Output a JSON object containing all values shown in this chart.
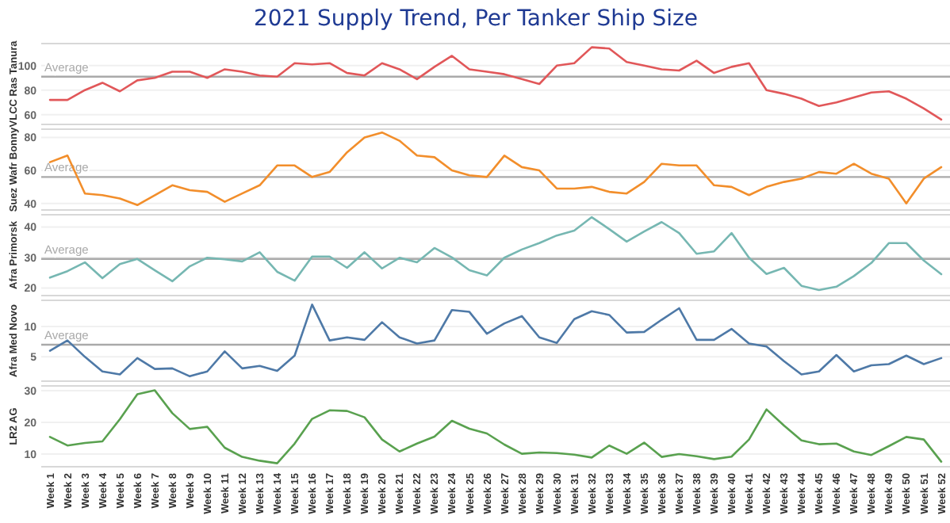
{
  "chart_data": [
    {
      "type": "line",
      "title": "2021 Supply Trend, Per Tanker  Ship Size",
      "ylabel": "VLCC Ras Tanura",
      "categories": [
        null,
        null,
        null,
        null,
        null,
        null,
        null,
        null,
        null,
        null,
        null,
        null,
        null,
        null,
        null,
        null,
        null,
        null,
        null,
        null,
        null,
        null,
        null,
        null,
        null,
        null,
        null,
        null,
        null,
        null,
        null,
        null,
        null,
        null,
        null,
        null,
        null,
        null,
        null,
        null,
        null,
        null,
        null,
        null,
        null,
        null,
        null,
        null,
        null,
        null,
        null,
        null
      ],
      "tick_labels": "y",
      "grid": "y",
      "ylim": [
        52,
        118
      ],
      "yticks": [
        60,
        80,
        100
      ],
      "ref_lines": [
        {
          "axis": "y",
          "value": 91,
          "label": "Average",
          "color": "#aaaaaa"
        }
      ],
      "series": [
        {
          "color": "#e15759",
          "values": [
            72,
            72,
            80,
            86,
            79,
            88,
            90,
            95,
            95,
            90,
            97,
            95,
            92,
            91,
            102,
            101,
            102,
            94,
            92,
            102,
            97,
            89,
            99,
            108,
            97,
            95,
            93,
            89,
            85,
            100,
            102,
            115,
            114,
            103,
            100,
            97,
            96,
            104,
            94,
            99,
            102,
            80,
            77,
            73,
            67,
            70,
            74,
            78,
            79,
            73,
            65,
            56
          ]
        }
      ]
    },
    {
      "type": "line",
      "ylabel": "Suez Wafr Bonny",
      "categories": [
        null,
        null,
        null,
        null,
        null,
        null,
        null,
        null,
        null,
        null,
        null,
        null,
        null,
        null,
        null,
        null,
        null,
        null,
        null,
        null,
        null,
        null,
        null,
        null,
        null,
        null,
        null,
        null,
        null,
        null,
        null,
        null,
        null,
        null,
        null,
        null,
        null,
        null,
        null,
        null,
        null,
        null,
        null,
        null,
        null,
        null,
        null,
        null,
        null,
        null,
        null,
        null
      ],
      "tick_labels": "y",
      "grid": "y",
      "ylim": [
        36,
        85
      ],
      "yticks": [
        40,
        60,
        80
      ],
      "ref_lines": [
        {
          "axis": "y",
          "value": 56,
          "label": "Average",
          "color": "#aaaaaa"
        }
      ],
      "series": [
        {
          "color": "#f28e2b",
          "values": [
            65,
            69,
            46,
            45,
            43,
            39,
            45,
            51,
            48,
            47,
            41,
            46,
            51,
            63,
            63,
            56,
            59,
            71,
            80,
            83,
            78,
            69,
            68,
            60,
            57,
            56,
            69,
            62,
            60,
            49,
            49,
            50,
            47,
            46,
            53,
            64,
            63,
            63,
            51,
            50,
            45,
            50,
            53,
            55,
            59,
            58,
            64,
            58,
            55,
            40,
            55,
            62
          ]
        }
      ]
    },
    {
      "type": "line",
      "ylabel": "Afra Primorsk",
      "categories": [
        null,
        null,
        null,
        null,
        null,
        null,
        null,
        null,
        null,
        null,
        null,
        null,
        null,
        null,
        null,
        null,
        null,
        null,
        null,
        null,
        null,
        null,
        null,
        null,
        null,
        null,
        null,
        null,
        null,
        null,
        null,
        null,
        null,
        null,
        null,
        null,
        null,
        null,
        null,
        null,
        null,
        null,
        null,
        null,
        null,
        null,
        null,
        null,
        null,
        null,
        null,
        null
      ],
      "tick_labels": "y",
      "grid": "y",
      "ylim": [
        17.5,
        44
      ],
      "yticks": [
        20,
        30,
        40
      ],
      "ref_lines": [
        {
          "axis": "y",
          "value": 29.5,
          "label": "Average",
          "color": "#aaaaaa"
        }
      ],
      "series": [
        {
          "color": "#76b7b2",
          "values": [
            23.4,
            25.5,
            28.4,
            23.2,
            27.8,
            29.5,
            25.8,
            22.2,
            27.1,
            29.9,
            29.4,
            28.7,
            31.7,
            25.3,
            22.4,
            30.3,
            30.3,
            26.6,
            31.7,
            26.4,
            29.9,
            28.4,
            33.1,
            30,
            25.8,
            24.1,
            29.9,
            32.6,
            34.7,
            37.2,
            38.8,
            43.2,
            39.3,
            35.2,
            38.5,
            41.6,
            38,
            31.2,
            32,
            38,
            29.9,
            24.6,
            26.6,
            20.7,
            19.3,
            20.4,
            23.9,
            28.2,
            34.7,
            34.7,
            29,
            24.5
          ]
        }
      ]
    },
    {
      "type": "line",
      "ylabel": "Afra Med Novo",
      "categories": [
        null,
        null,
        null,
        null,
        null,
        null,
        null,
        null,
        null,
        null,
        null,
        null,
        null,
        null,
        null,
        null,
        null,
        null,
        null,
        null,
        null,
        null,
        null,
        null,
        null,
        null,
        null,
        null,
        null,
        null,
        null,
        null,
        null,
        null,
        null,
        null,
        null,
        null,
        null,
        null,
        null,
        null,
        null,
        null,
        null,
        null,
        null,
        null,
        null,
        null,
        null,
        null
      ],
      "tick_labels": "y",
      "grid": "y",
      "ylim": [
        1,
        14.3
      ],
      "yticks": [
        5,
        10
      ],
      "ref_lines": [
        {
          "axis": "y",
          "value": 7,
          "label": "Average",
          "color": "#aaaaaa"
        }
      ],
      "series": [
        {
          "color": "#4e79a7",
          "values": [
            6,
            7.7,
            5,
            2.6,
            2.1,
            4.8,
            3,
            3.1,
            1.8,
            2.6,
            5.9,
            3.1,
            3.5,
            2.7,
            5.2,
            13.6,
            7.7,
            8.2,
            7.8,
            10.7,
            8.2,
            7.2,
            7.7,
            12.7,
            12.4,
            8.8,
            10.5,
            11.7,
            8.2,
            7.3,
            11.2,
            12.5,
            11.9,
            9,
            9.1,
            11.1,
            13,
            7.8,
            7.8,
            9.6,
            7.2,
            6.7,
            4.3,
            2.1,
            2.6,
            5.3,
            2.6,
            3.6,
            3.8,
            5.2,
            3.8,
            4.8
          ]
        }
      ]
    },
    {
      "type": "line",
      "ylabel": "LR2 AG",
      "categories": [
        "Week 1",
        "Week 2",
        "Week 3",
        "Week 4",
        "Week 5",
        "Week 6",
        "Week 7",
        "Week 8",
        "Week 9",
        "Week 10",
        "Week 11",
        "Week 12",
        "Week 13",
        "Week 14",
        "Week 15",
        "Week 16",
        "Week 17",
        "Week 18",
        "Week 19",
        "Week 20",
        "Week 21",
        "Week 22",
        "Week 23",
        "Week 24",
        "Week 25",
        "Week 26",
        "Week 27",
        "Week 28",
        "Week 29",
        "Week 30",
        "Week 31",
        "Week 32",
        "Week 33",
        "Week 34",
        "Week 35",
        "Week 36",
        "Week 37",
        "Week 38",
        "Week 39",
        "Week 40",
        "Week 41",
        "Week 42",
        "Week 43",
        "Week 44",
        "Week 45",
        "Week 46",
        "Week 47",
        "Week 48",
        "Week 49",
        "Week 50",
        "Week 51",
        "Week 52"
      ],
      "grid": "y",
      "ylim": [
        6,
        31.5
      ],
      "yticks": [
        10,
        20,
        30
      ],
      "series": [
        {
          "color": "#59a14f",
          "values": [
            15.4,
            12.7,
            13.5,
            14,
            21,
            28.9,
            30.1,
            22.9,
            17.9,
            18.6,
            12,
            9.1,
            7.9,
            7.1,
            13.3,
            21.1,
            23.8,
            23.6,
            21.6,
            14.6,
            10.8,
            13.3,
            15.5,
            20.5,
            18,
            16.5,
            13,
            10.1,
            10.5,
            10.3,
            9.8,
            8.9,
            12.7,
            10.1,
            13.6,
            9.1,
            10,
            9.3,
            8.4,
            9.2,
            14.6,
            24.1,
            19,
            14.3,
            13.1,
            13.3,
            10.8,
            9.7,
            12.5,
            15.4,
            14.6,
            7.6
          ]
        }
      ]
    }
  ]
}
